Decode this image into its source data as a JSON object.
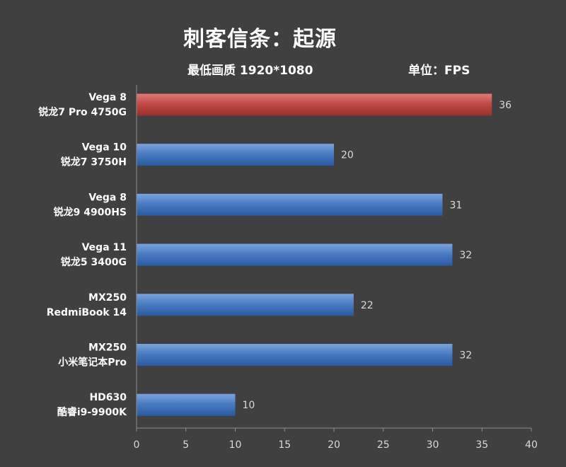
{
  "chart_data": {
    "type": "bar",
    "orientation": "horizontal",
    "title": "刺客信条：起源",
    "subtitle": "最低画质 1920*1080",
    "unit": "单位：FPS",
    "categories": [
      [
        "Vega 8",
        "锐龙7 Pro 4750G"
      ],
      [
        "Vega 10",
        "锐龙7 3750H"
      ],
      [
        "Vega 8",
        "锐龙9 4900HS"
      ],
      [
        "Vega 11",
        "锐龙5 3400G"
      ],
      [
        "MX250",
        "RedmiBook 14"
      ],
      [
        "MX250",
        "小米笔记本Pro"
      ],
      [
        "HD630",
        "酷睿i9-9900K"
      ]
    ],
    "values": [
      36,
      20,
      31,
      32,
      22,
      32,
      10
    ],
    "highlight_index": 0,
    "xlim": [
      0,
      40
    ],
    "xticks": [
      0,
      5,
      10,
      15,
      20,
      25,
      30,
      35,
      40
    ],
    "grid": false,
    "colors": {
      "highlight": "#c0504d",
      "default": "#4f81bd",
      "background": "#404040"
    }
  }
}
